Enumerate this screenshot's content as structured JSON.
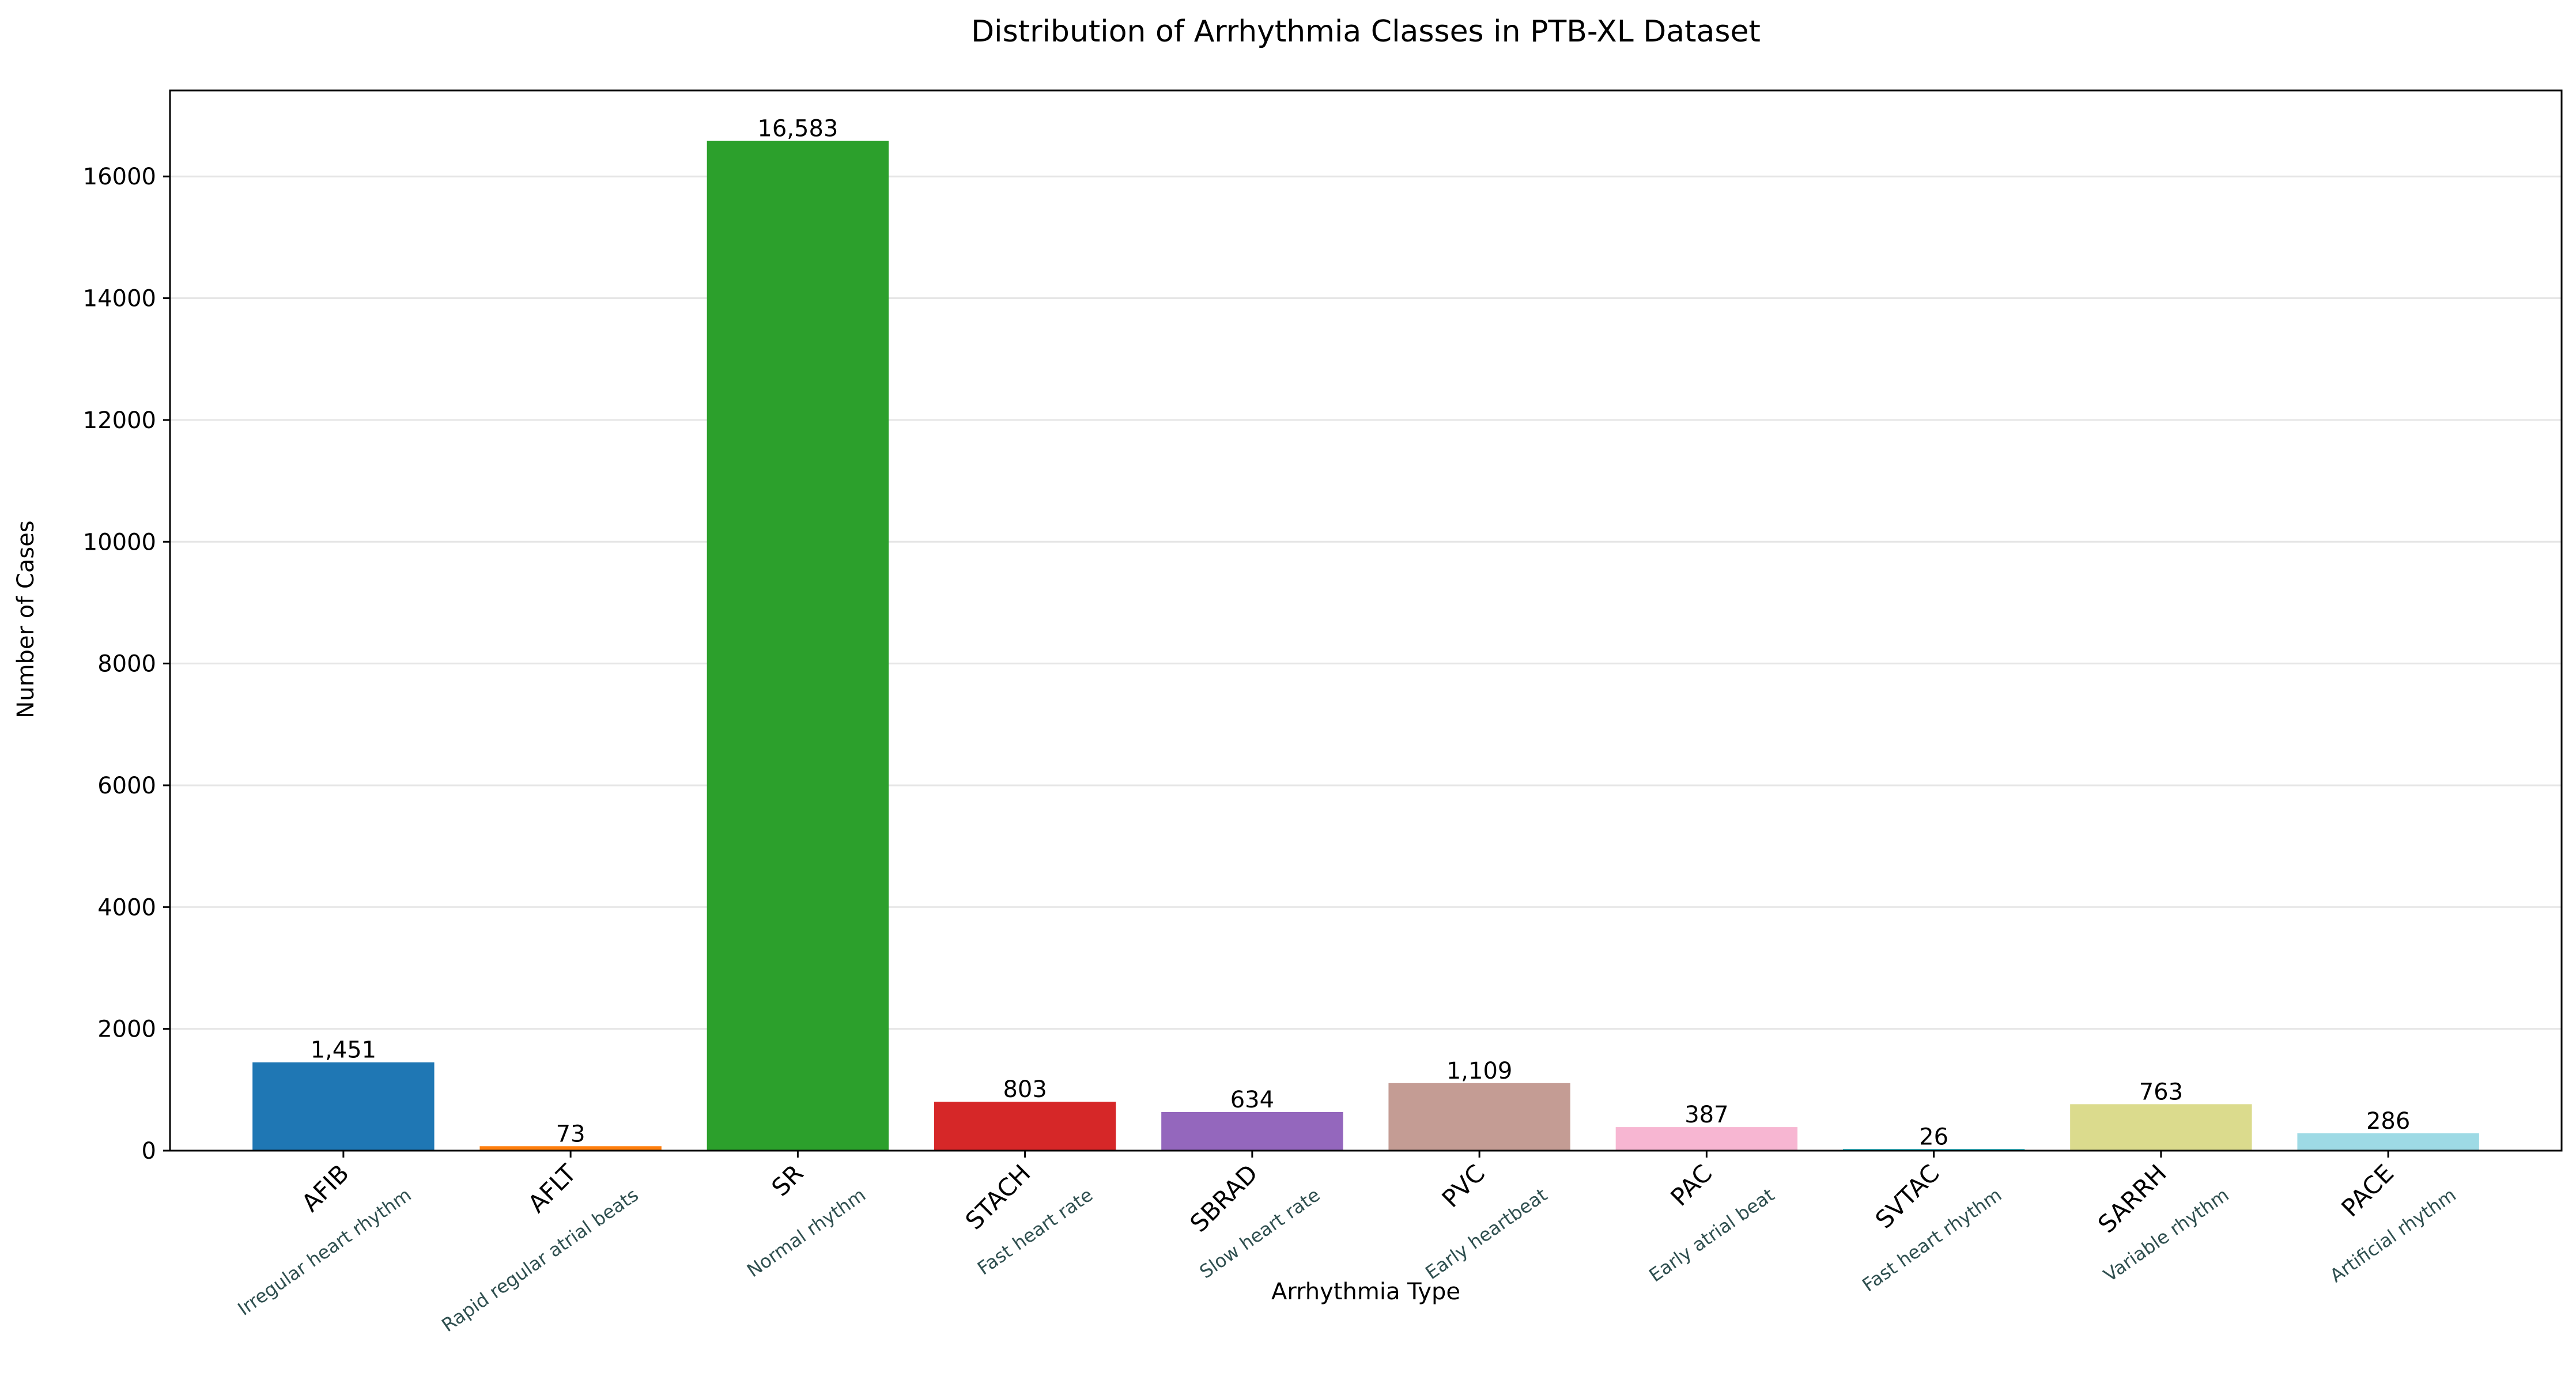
{
  "chart_data": {
    "type": "bar",
    "title": "Distribution of Arrhythmia Classes in PTB-XL Dataset",
    "xlabel": "Arrhythmia Type",
    "ylabel": "Number of Cases",
    "categories": [
      "AFIB",
      "AFLT",
      "SR",
      "STACH",
      "SBRAD",
      "PVC",
      "PAC",
      "SVTAC",
      "SARRH",
      "PACE"
    ],
    "descriptions": [
      "Irregular heart rhythm",
      "Rapid regular atrial beats",
      "Normal rhythm",
      "Fast heart rate",
      "Slow heart rate",
      "Early heartbeat",
      "Early atrial beat",
      "Fast heart rhythm",
      "Variable rhythm",
      "Artificial rhythm"
    ],
    "values": [
      1451,
      73,
      16583,
      803,
      634,
      1109,
      387,
      26,
      763,
      286
    ],
    "value_labels": [
      "1,451",
      "73",
      "16,583",
      "803",
      "634",
      "1,109",
      "387",
      "26",
      "763",
      "286"
    ],
    "colors": [
      "#1f77b4",
      "#ff7f0e",
      "#2ca02c",
      "#d62728",
      "#9467bd",
      "#c49c94",
      "#f7b6d2",
      "#17becf",
      "#dbdb8d",
      "#9edae5"
    ],
    "ylim": [
      0,
      17412
    ],
    "yticks": [
      0,
      2000,
      4000,
      6000,
      8000,
      10000,
      12000,
      14000,
      16000
    ],
    "grid": "y",
    "grid_color": "#e6e6e6"
  }
}
